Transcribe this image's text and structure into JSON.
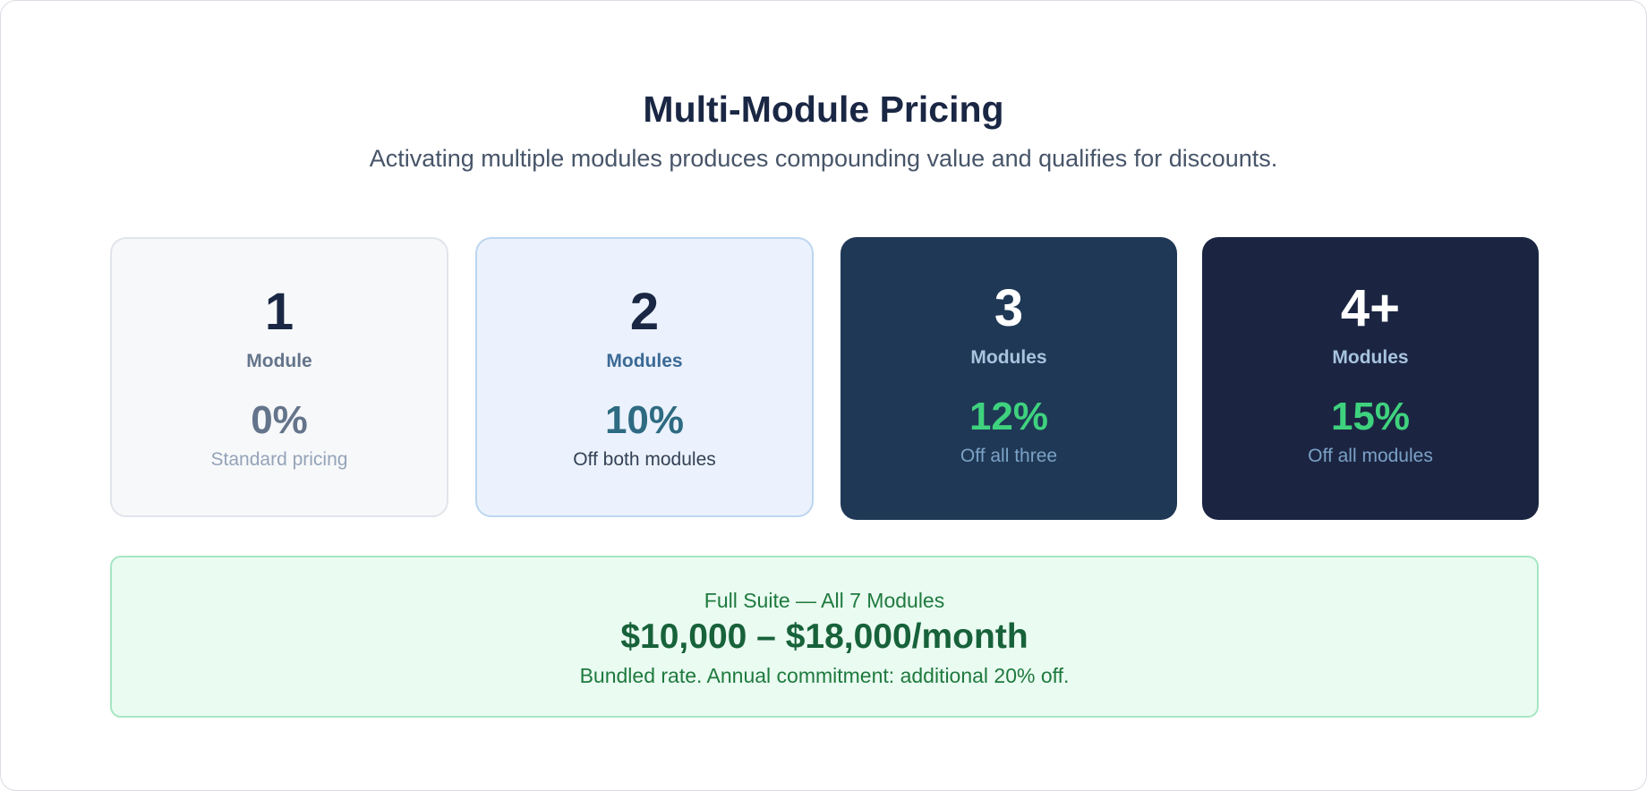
{
  "header": {
    "title": "Multi-Module Pricing",
    "subtitle": "Activating multiple modules produces compounding value and qualifies for discounts."
  },
  "tiers": [
    {
      "count": "1",
      "unit": "Module",
      "discount": "0%",
      "note": "Standard pricing"
    },
    {
      "count": "2",
      "unit": "Modules",
      "discount": "10%",
      "note": "Off both modules"
    },
    {
      "count": "3",
      "unit": "Modules",
      "discount": "12%",
      "note": "Off all three"
    },
    {
      "count": "4+",
      "unit": "Modules",
      "discount": "15%",
      "note": "Off all modules"
    }
  ],
  "suite": {
    "label": "Full Suite — All 7 Modules",
    "price": "$10,000 – $18,000/month",
    "note": "Bundled rate. Annual commitment: additional 20% off."
  },
  "colors": {
    "navy": "#1a2744",
    "dark_blue": "#1f3856",
    "darker_navy": "#1b2542",
    "green_accent": "#3fd27e",
    "suite_bg": "#eafbf1"
  }
}
